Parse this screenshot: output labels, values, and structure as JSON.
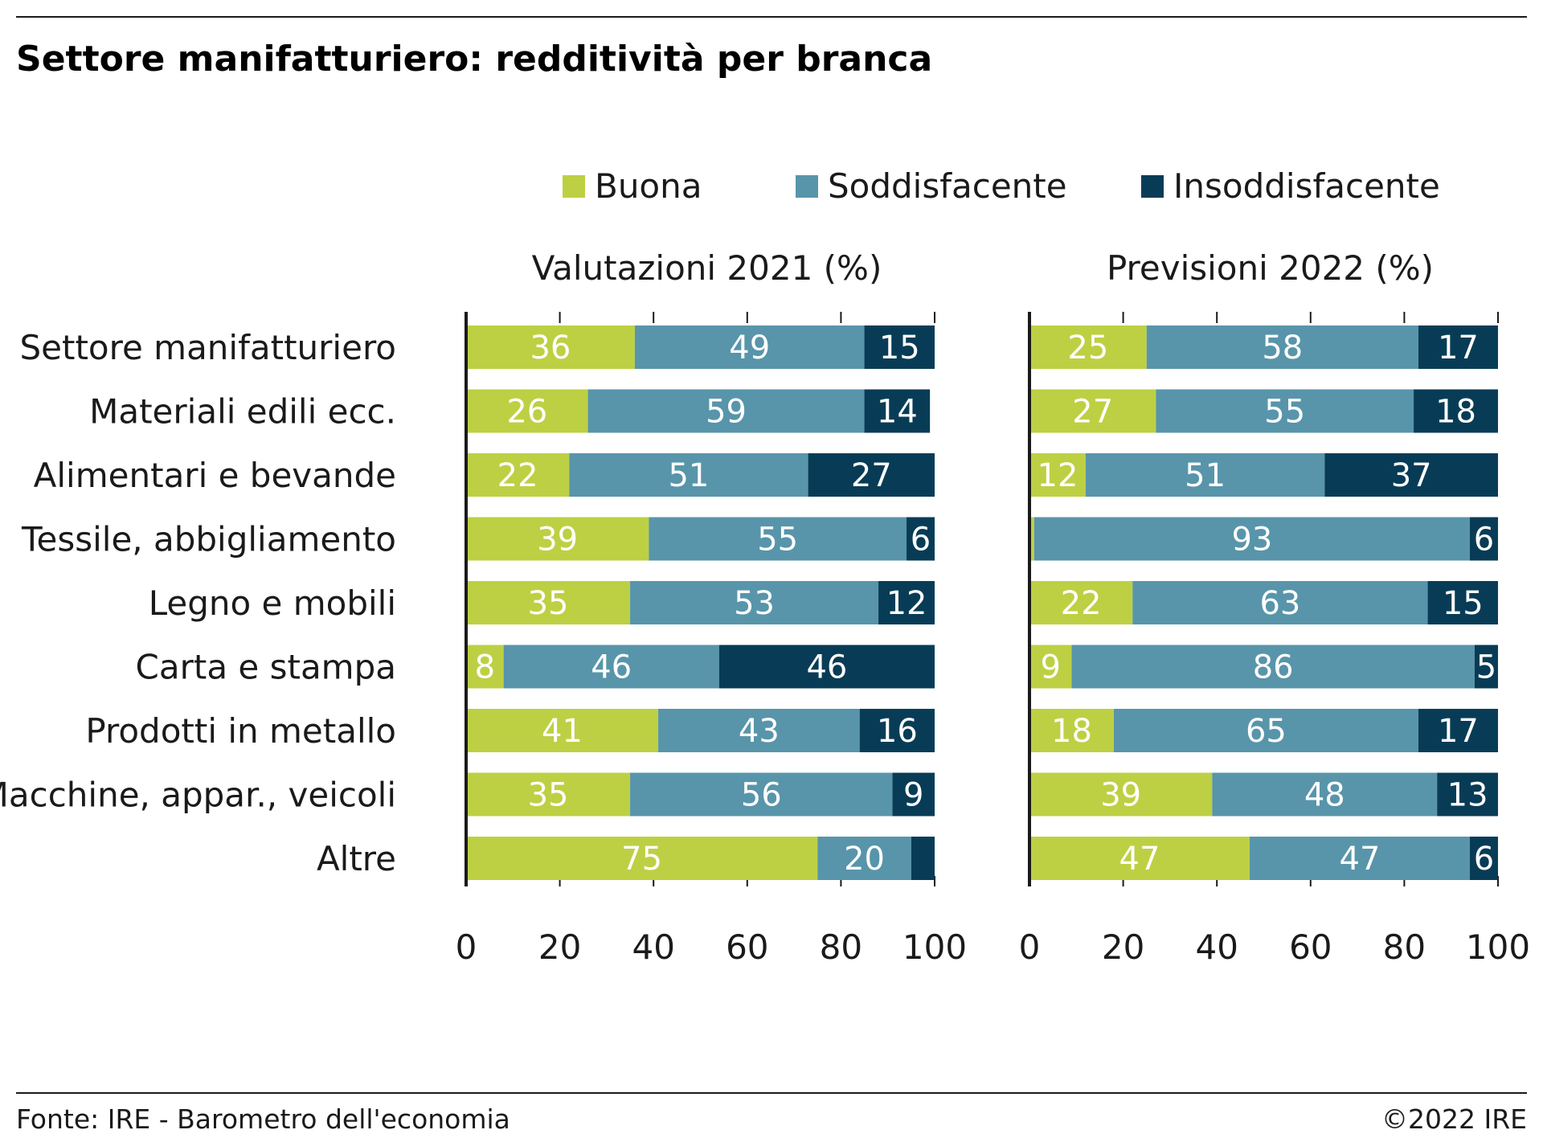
{
  "title": "Settore manifatturiero: redditività per branca",
  "footer": {
    "source": "Fonte: IRE - Barometro dell'economia",
    "copyright": "©2022 IRE"
  },
  "legend": [
    {
      "name": "Buona",
      "color": "#bdd043"
    },
    {
      "name": "Soddisfacente",
      "color": "#5895aa"
    },
    {
      "name": "Insoddisfacente",
      "color": "#083c56"
    }
  ],
  "chart_data": [
    {
      "type": "bar",
      "orientation": "horizontal",
      "stacked": true,
      "title": "Valutazioni 2021 (%)",
      "categories": [
        "Settore manifatturiero",
        "Materiali edili ecc.",
        "Alimentari e bevande",
        "Tessile, abbigliamento",
        "Legno e mobili",
        "Carta e stampa",
        "Prodotti in metallo",
        "Macchine, appar., veicoli",
        "Altre"
      ],
      "series": [
        {
          "name": "Buona",
          "values": [
            36,
            26,
            22,
            39,
            35,
            8,
            41,
            35,
            75
          ]
        },
        {
          "name": "Soddisfacente",
          "values": [
            49,
            59,
            51,
            55,
            53,
            46,
            43,
            56,
            20
          ]
        },
        {
          "name": "Insoddisfacente",
          "values": [
            15,
            14,
            27,
            6,
            12,
            46,
            16,
            9,
            5
          ]
        }
      ],
      "labels": [
        [
          "36",
          "26",
          "22",
          "39",
          "35",
          "8",
          "41",
          "35",
          "75"
        ],
        [
          "49",
          "59",
          "51",
          "55",
          "53",
          "46",
          "43",
          "56",
          "20"
        ],
        [
          "15",
          "14",
          "27",
          "6",
          "12",
          "46",
          "16",
          "9",
          ""
        ]
      ],
      "xlim": [
        0,
        100
      ],
      "xticks": [
        "0",
        "20",
        "40",
        "60",
        "80",
        "100"
      ]
    },
    {
      "type": "bar",
      "orientation": "horizontal",
      "stacked": true,
      "title": "Previsioni 2022 (%)",
      "categories": [
        "Settore manifatturiero",
        "Materiali edili ecc.",
        "Alimentari e bevande",
        "Tessile, abbigliamento",
        "Legno e mobili",
        "Carta e stampa",
        "Prodotti in metallo",
        "Macchine, appar., veicoli",
        "Altre"
      ],
      "series": [
        {
          "name": "Buona",
          "values": [
            25,
            27,
            12,
            1,
            22,
            9,
            18,
            39,
            47
          ]
        },
        {
          "name": "Soddisfacente",
          "values": [
            58,
            55,
            51,
            93,
            63,
            86,
            65,
            48,
            47
          ]
        },
        {
          "name": "Insoddisfacente",
          "values": [
            17,
            18,
            37,
            6,
            15,
            5,
            17,
            13,
            6
          ]
        }
      ],
      "labels": [
        [
          "25",
          "27",
          "12",
          "",
          "22",
          "9",
          "18",
          "39",
          "47"
        ],
        [
          "58",
          "55",
          "51",
          "93",
          "63",
          "86",
          "65",
          "48",
          "47"
        ],
        [
          "17",
          "18",
          "37",
          "6",
          "15",
          "5",
          "17",
          "13",
          "6"
        ]
      ],
      "xlim": [
        0,
        100
      ],
      "xticks": [
        "0",
        "20",
        "40",
        "60",
        "80",
        "100"
      ]
    }
  ]
}
